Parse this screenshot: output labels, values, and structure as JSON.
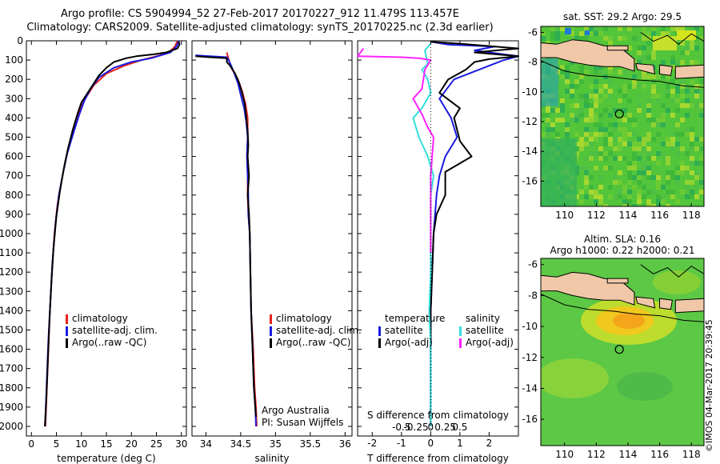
{
  "header": {
    "line1": "Argo profile: CS 5904994_52 27-Feb-2017 20170227_912 11.479S 113.457E",
    "line2": "Climatology: CARS2009. Satellite-adjusted climatology: synTS_20170225.nc (2.3d earlier)"
  },
  "colors": {
    "climatology": "#e8211d",
    "satellite": "#1a1ae0",
    "argo": "#000000",
    "salinity_sat": "#33dede",
    "salinity_argo": "#ff22ff",
    "land": "#f0c8a8"
  },
  "legend_temp": {
    "climatology": "climatology",
    "satellite": "satellite-adj. clim.",
    "argo": "Argo(..raw -QC)"
  },
  "legend_sal": {
    "climatology": "climatology",
    "satellite": "satellite-adj. clim.",
    "argo": "Argo(..raw -QC)"
  },
  "legend_diff": {
    "temp_head": "temperature",
    "temp_sat": "satellite",
    "temp_argo": "Argo(-adj)",
    "sal_head": "salinity",
    "sal_sat": "satellite",
    "sal_argo": "Argo(-adj)"
  },
  "notes": {
    "line1": "Argo Australia",
    "line2": "PI: Susan Wijffels"
  },
  "maps": {
    "sst_title": "sat. SST: 29.2  Argo: 29.5",
    "sla_title1": "Altim. SLA: 0.16",
    "sla_title2": "Argo h1000: 0.22 h2000: 0.21",
    "xticks": [
      "110",
      "112",
      "114",
      "116",
      "118"
    ],
    "yticks": [
      "-6",
      "-8",
      "-10",
      "-12",
      "-14",
      "-16"
    ]
  },
  "credit": "©IMOS 04-Mar-2017 20:39:45",
  "chart_data": [
    {
      "type": "line",
      "xlabel": "temperature (deg C)",
      "ylabel": "",
      "xlim": [
        -1,
        31
      ],
      "ylim": [
        2050,
        0
      ],
      "xticks": [
        0,
        5,
        10,
        15,
        20,
        25,
        30
      ],
      "yticks": [
        0,
        100,
        200,
        300,
        400,
        500,
        600,
        700,
        800,
        900,
        1000,
        1100,
        1200,
        1300,
        1400,
        1500,
        1600,
        1700,
        1800,
        1900,
        2000
      ],
      "series": [
        {
          "name": "climatology",
          "color": "#e8211d",
          "points": [
            [
              29.2,
              0
            ],
            [
              28.7,
              30
            ],
            [
              27.5,
              60
            ],
            [
              25,
              80
            ],
            [
              22,
              100
            ],
            [
              18.5,
              130
            ],
            [
              15,
              170
            ],
            [
              12.5,
              230
            ],
            [
              11,
              290
            ],
            [
              10.2,
              330
            ],
            [
              9.2,
              400
            ],
            [
              8,
              500
            ],
            [
              6.8,
              620
            ],
            [
              6,
              730
            ],
            [
              5.2,
              850
            ],
            [
              4.6,
              1000
            ],
            [
              4.1,
              1200
            ],
            [
              3.7,
              1400
            ],
            [
              3.4,
              1600
            ],
            [
              3.1,
              1800
            ],
            [
              2.8,
              2000
            ]
          ]
        },
        {
          "name": "satellite-adj. clim.",
          "color": "#1a1ae0",
          "points": [
            [
              29.5,
              0
            ],
            [
              29,
              30
            ],
            [
              27.8,
              60
            ],
            [
              24,
              90
            ],
            [
              20,
              110
            ],
            [
              16.5,
              140
            ],
            [
              13.5,
              190
            ],
            [
              11.8,
              250
            ],
            [
              10.6,
              310
            ],
            [
              9.6,
              380
            ],
            [
              8.5,
              470
            ],
            [
              7.2,
              580
            ],
            [
              6.3,
              690
            ],
            [
              5.5,
              800
            ],
            [
              4.8,
              950
            ],
            [
              4.2,
              1150
            ],
            [
              3.8,
              1350
            ],
            [
              3.4,
              1550
            ],
            [
              3.1,
              1750
            ],
            [
              2.8,
              1950
            ],
            [
              2.7,
              2000
            ]
          ]
        },
        {
          "name": "Argo(..raw -QC)",
          "color": "#000000",
          "points": [
            [
              29.5,
              5
            ],
            [
              29.6,
              20
            ],
            [
              29.2,
              40
            ],
            [
              27,
              60
            ],
            [
              24.5,
              70
            ],
            [
              21,
              80
            ],
            [
              19,
              90
            ],
            [
              16.5,
              110
            ],
            [
              15,
              140
            ],
            [
              13.5,
              180
            ],
            [
              12,
              240
            ],
            [
              11,
              280
            ],
            [
              10,
              320
            ],
            [
              9.2,
              380
            ],
            [
              8.3,
              460
            ],
            [
              7.3,
              560
            ],
            [
              6.5,
              660
            ],
            [
              5.7,
              780
            ],
            [
              5,
              910
            ],
            [
              4.4,
              1080
            ],
            [
              4,
              1250
            ],
            [
              3.6,
              1450
            ],
            [
              3.3,
              1650
            ],
            [
              3,
              1850
            ],
            [
              2.7,
              2000
            ]
          ]
        }
      ]
    },
    {
      "type": "line",
      "xlabel": "salinity",
      "ylabel": "",
      "xlim": [
        33.8,
        36.1
      ],
      "ylim": [
        2050,
        0
      ],
      "xticks": [
        34,
        34.5,
        35,
        35.5,
        36
      ],
      "series": [
        {
          "name": "climatology",
          "color": "#e8211d",
          "points": [
            [
              34.3,
              60
            ],
            [
              34.33,
              100
            ],
            [
              34.38,
              150
            ],
            [
              34.46,
              200
            ],
            [
              34.52,
              260
            ],
            [
              34.57,
              330
            ],
            [
              34.6,
              400
            ],
            [
              34.6,
              500
            ],
            [
              34.59,
              600
            ],
            [
              34.6,
              700
            ],
            [
              34.6,
              800
            ],
            [
              34.61,
              900
            ],
            [
              34.63,
              1000
            ],
            [
              34.64,
              1200
            ],
            [
              34.65,
              1400
            ],
            [
              34.68,
              1600
            ],
            [
              34.7,
              1800
            ],
            [
              34.72,
              1900
            ],
            [
              34.73,
              2000
            ]
          ]
        },
        {
          "name": "satellite-adj. clim.",
          "color": "#1a1ae0",
          "points": [
            [
              33.85,
              75
            ],
            [
              34.3,
              85
            ],
            [
              34.34,
              110
            ],
            [
              34.4,
              160
            ],
            [
              34.46,
              220
            ],
            [
              34.5,
              280
            ],
            [
              34.55,
              350
            ],
            [
              34.58,
              420
            ],
            [
              34.6,
              500
            ],
            [
              34.59,
              600
            ],
            [
              34.6,
              700
            ],
            [
              34.61,
              800
            ],
            [
              34.61,
              900
            ],
            [
              34.63,
              1000
            ],
            [
              34.64,
              1200
            ],
            [
              34.65,
              1400
            ],
            [
              34.67,
              1600
            ],
            [
              34.69,
              1800
            ],
            [
              34.71,
              1900
            ],
            [
              34.72,
              2000
            ]
          ]
        },
        {
          "name": "Argo(..raw -QC)",
          "color": "#000000",
          "points": [
            [
              33.85,
              80
            ],
            [
              34.05,
              85
            ],
            [
              34.3,
              90
            ],
            [
              34.3,
              110
            ],
            [
              34.35,
              130
            ],
            [
              34.42,
              170
            ],
            [
              34.48,
              220
            ],
            [
              34.52,
              270
            ],
            [
              34.56,
              330
            ],
            [
              34.58,
              400
            ],
            [
              34.6,
              470
            ],
            [
              34.61,
              540
            ],
            [
              34.6,
              600
            ],
            [
              34.62,
              700
            ],
            [
              34.6,
              800
            ],
            [
              34.62,
              900
            ],
            [
              34.63,
              1000
            ],
            [
              34.64,
              1200
            ],
            [
              34.65,
              1400
            ],
            [
              34.67,
              1600
            ],
            [
              34.69,
              1800
            ],
            [
              34.71,
              1900
            ],
            [
              34.72,
              1950
            ]
          ]
        }
      ]
    },
    {
      "type": "line",
      "xlabel": "T difference from climatology",
      "x2label": "S difference from climatology",
      "xlim": [
        -2.5,
        3
      ],
      "ylim": [
        2050,
        0
      ],
      "xticks": [
        -2,
        -1,
        0,
        1,
        2
      ],
      "x2ticks": [
        -0.5,
        -0.25,
        0,
        0.25,
        0.5
      ],
      "series": [
        {
          "name": "temperature satellite",
          "color": "#1a1ae0",
          "points": [
            [
              0,
              5
            ],
            [
              0.6,
              20
            ],
            [
              2.2,
              30
            ],
            [
              1.5,
              50
            ],
            [
              3,
              80
            ],
            [
              2.5,
              100
            ],
            [
              0.8,
              200
            ],
            [
              0.3,
              300
            ],
            [
              0.7,
              400
            ],
            [
              0.9,
              500
            ],
            [
              0.5,
              600
            ],
            [
              0.3,
              700
            ],
            [
              0.2,
              800
            ],
            [
              0.1,
              1000
            ],
            [
              0.05,
              1200
            ],
            [
              0,
              1400
            ],
            [
              0,
              1600
            ],
            [
              0,
              1800
            ],
            [
              0,
              2000
            ]
          ]
        },
        {
          "name": "temperature Argo(-adj)",
          "color": "#000000",
          "points": [
            [
              0,
              5
            ],
            [
              1,
              15
            ],
            [
              3,
              40
            ],
            [
              1.5,
              60
            ],
            [
              3,
              80
            ],
            [
              2,
              95
            ],
            [
              1.5,
              110
            ],
            [
              1.2,
              150
            ],
            [
              0.6,
              200
            ],
            [
              0.3,
              270
            ],
            [
              1,
              350
            ],
            [
              0.8,
              400
            ],
            [
              1,
              520
            ],
            [
              1.4,
              600
            ],
            [
              0.5,
              680
            ],
            [
              0.5,
              800
            ],
            [
              0.2,
              900
            ],
            [
              0.1,
              1000
            ],
            [
              0.05,
              1200
            ],
            [
              0,
              1400
            ],
            [
              0,
              1600
            ],
            [
              0,
              1800
            ],
            [
              0,
              2000
            ]
          ]
        },
        {
          "name": "salinity satellite",
          "color": "#33dede",
          "points": [
            [
              0,
              15
            ],
            [
              -0.2,
              50
            ],
            [
              -0.1,
              120
            ],
            [
              -0.3,
              150
            ],
            [
              -0.1,
              200
            ],
            [
              0,
              270
            ],
            [
              -0.3,
              350
            ],
            [
              -0.6,
              400
            ],
            [
              -0.4,
              500
            ],
            [
              -0.1,
              600
            ],
            [
              0.1,
              700
            ],
            [
              0,
              800
            ],
            [
              0,
              1000
            ],
            [
              0,
              1200
            ],
            [
              -0.05,
              1400
            ],
            [
              0,
              1600
            ],
            [
              0,
              1800
            ],
            [
              0,
              2000
            ]
          ]
        },
        {
          "name": "salinity Argo(-adj)",
          "color": "#ff22ff",
          "points": [
            [
              -2.3,
              40
            ],
            [
              -2.5,
              80
            ],
            [
              -1,
              85
            ],
            [
              -0.4,
              90
            ],
            [
              0,
              100
            ],
            [
              -0.2,
              150
            ],
            [
              -0.3,
              250
            ],
            [
              -0.6,
              300
            ],
            [
              -0.3,
              380
            ],
            [
              -0.1,
              450
            ],
            [
              0.1,
              500
            ],
            [
              0.05,
              600
            ],
            [
              0,
              700
            ],
            [
              0,
              900
            ],
            [
              0,
              1100
            ]
          ]
        }
      ]
    }
  ]
}
